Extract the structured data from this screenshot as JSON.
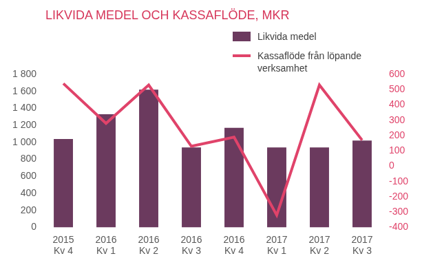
{
  "chart_data": {
    "type": "bar",
    "title": "LIKVIDA MEDEL OCH KASSAFLÖDE, MKR",
    "categories": [
      [
        "2015",
        "Kv 4"
      ],
      [
        "2016",
        "Kv 1"
      ],
      [
        "2016",
        "Kv 2"
      ],
      [
        "2016",
        "Kv 3"
      ],
      [
        "2016",
        "Kv 4"
      ],
      [
        "2017",
        "Kv 1"
      ],
      [
        "2017",
        "Kv 2"
      ],
      [
        "2017",
        "Kv 3"
      ]
    ],
    "series": [
      {
        "name": "Likvida medel",
        "type": "bar",
        "color": "#6b3a5e",
        "values": [
          1040,
          1330,
          1620,
          940,
          1170,
          940,
          940,
          1020
        ]
      },
      {
        "name": "Kassaflöde från löpande verksamhet",
        "type": "line",
        "color": "#e0436a",
        "axis": "y2",
        "values": [
          540,
          280,
          530,
          130,
          190,
          -320,
          530,
          170
        ]
      }
    ],
    "ylim": [
      0,
      1800
    ],
    "yticks": [
      0,
      200,
      400,
      600,
      800,
      {
        "value": 1000,
        "label": "1 000"
      },
      {
        "value": 1200,
        "label": "1 200"
      },
      {
        "value": 1400,
        "label": "1 400"
      },
      {
        "value": 1600,
        "label": "1 600"
      },
      {
        "value": 1800,
        "label": "1 800"
      }
    ],
    "y2lim": [
      -400,
      600
    ],
    "y2ticks": [
      -400,
      -300,
      -200,
      -100,
      0,
      100,
      200,
      300,
      400,
      500,
      600
    ],
    "grid": false,
    "legend": "top-right"
  }
}
